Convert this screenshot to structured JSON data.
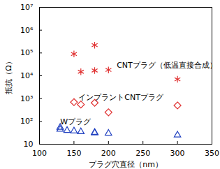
{
  "chart_data": {
    "type": "scatter",
    "x_label": "プラグ穴直径（nm）",
    "y_label": "抵抗（Ω）",
    "log": "y",
    "xlim": [
      100,
      350
    ],
    "xticks": [
      100,
      150,
      200,
      250,
      300,
      350
    ],
    "ylim": [
      10,
      10000000
    ],
    "yticks": [
      10,
      {
        "value": 100,
        "label": "10²"
      },
      {
        "value": 1000,
        "label": "10³"
      },
      {
        "value": 10000,
        "label": "10⁴"
      },
      {
        "value": 100000,
        "label": "10⁵"
      },
      {
        "value": 1000000,
        "label": "10⁶"
      },
      {
        "value": 10000000,
        "label": "10⁷"
      }
    ],
    "series": [
      {
        "name": "CNTプラグ（低温直接合成）",
        "color": "#e03030",
        "marker": "asterisk",
        "x": [
          150,
          160,
          180,
          180,
          200,
          300
        ],
        "values": [
          90000,
          15000,
          17000,
          220000,
          18000,
          7000
        ]
      },
      {
        "name": "インプラントCNTプラグ",
        "color": "#e03030",
        "marker": "diamond",
        "x": [
          150,
          160,
          180,
          200,
          300
        ],
        "values": [
          700,
          550,
          650,
          250,
          500
        ]
      },
      {
        "name": "Wプラグ",
        "color": "#2040c0",
        "marker": "triangle",
        "x": [
          130,
          130,
          140,
          150,
          160,
          180,
          180,
          200,
          300
        ],
        "values": [
          55,
          45,
          40,
          38,
          35,
          33,
          31,
          30,
          25
        ]
      }
    ]
  }
}
